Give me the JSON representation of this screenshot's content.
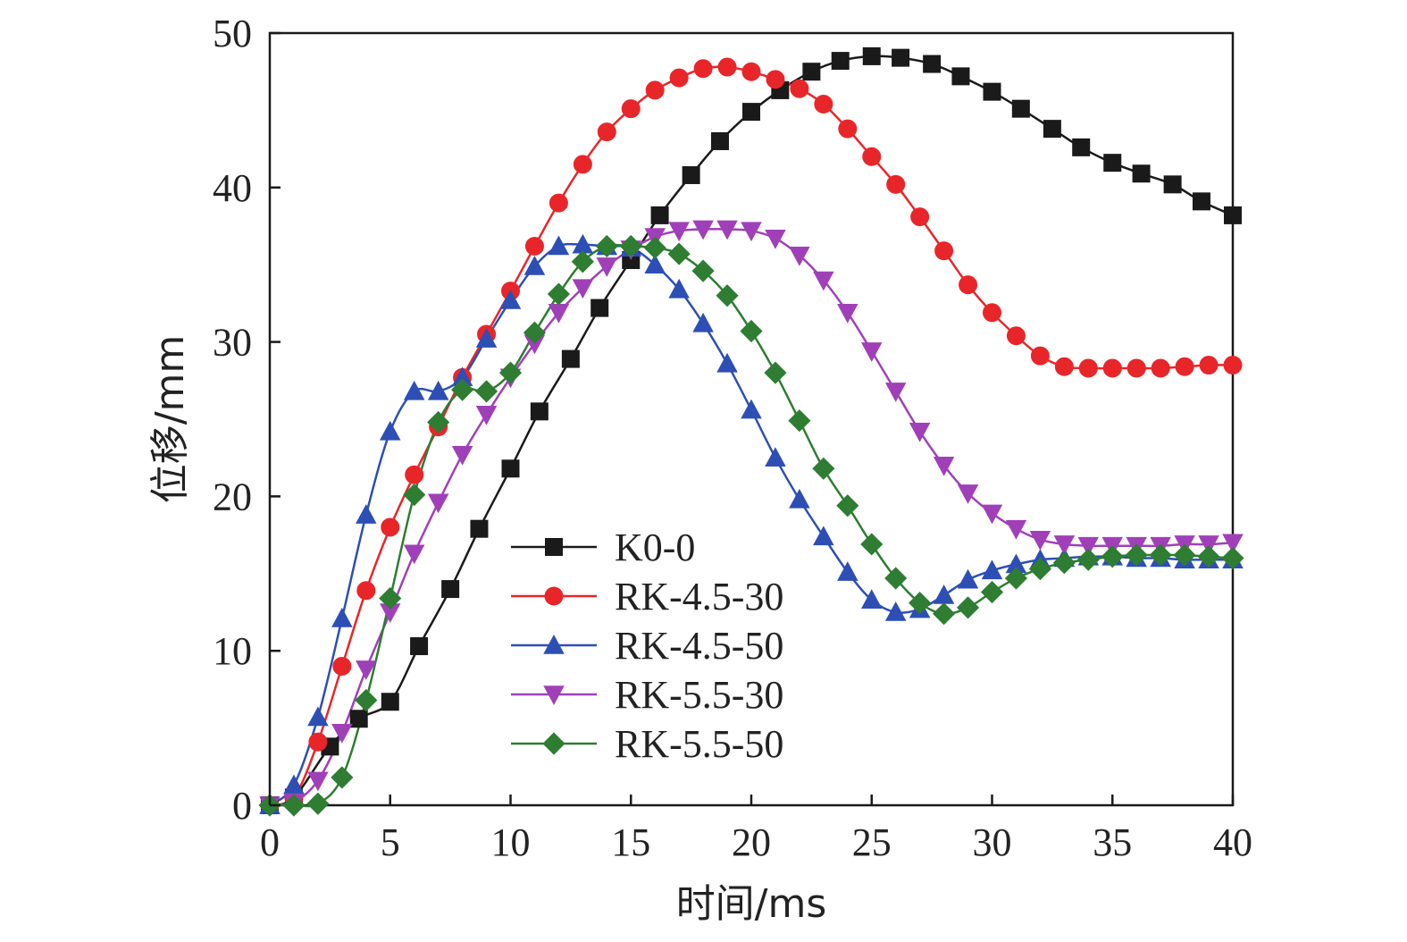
{
  "chart_data": {
    "type": "line",
    "title": "",
    "xlabel": "时间/ms",
    "ylabel": "位移/mm",
    "xlim": [
      0,
      40
    ],
    "ylim": [
      0,
      50
    ],
    "xticks": [
      0,
      5,
      10,
      15,
      20,
      25,
      30,
      35,
      40
    ],
    "yticks": [
      0,
      10,
      20,
      30,
      40,
      50
    ],
    "legend_position": "bottom-center",
    "series": [
      {
        "name": "K0-0",
        "color": "#1a1a1a",
        "marker": "square",
        "x": [
          0,
          1,
          2.5,
          3.7,
          5,
          6.2,
          7.5,
          8.7,
          10,
          11.2,
          12.5,
          13.7,
          15,
          16.2,
          17.5,
          18.7,
          20,
          21.2,
          22.5,
          23.7,
          25,
          26.2,
          27.5,
          28.7,
          30,
          31.2,
          32.5,
          33.7,
          35,
          36.2,
          37.5,
          38.7,
          40
        ],
        "y": [
          0,
          0.5,
          3.8,
          5.6,
          6.7,
          10.3,
          14.0,
          17.9,
          21.8,
          25.5,
          28.9,
          32.2,
          35.3,
          38.2,
          40.8,
          43.0,
          44.9,
          46.3,
          47.5,
          48.2,
          48.5,
          48.4,
          48.0,
          47.2,
          46.2,
          45.1,
          43.8,
          42.6,
          41.6,
          40.9,
          40.2,
          39.1,
          38.2
        ]
      },
      {
        "name": "RK-4.5-30",
        "color": "#e8262a",
        "marker": "circle",
        "x": [
          0,
          1,
          2,
          3,
          4,
          5,
          6,
          7,
          8,
          9,
          10,
          11,
          12,
          13,
          14,
          15,
          16,
          17,
          18,
          19,
          20,
          21,
          22,
          23,
          24,
          25,
          26,
          27,
          28,
          29,
          30,
          31,
          32,
          33,
          34,
          35,
          36,
          37,
          38,
          39,
          40
        ],
        "y": [
          0,
          0.5,
          4.1,
          9.0,
          13.9,
          18.0,
          21.4,
          24.5,
          27.7,
          30.5,
          33.3,
          36.2,
          39.0,
          41.5,
          43.6,
          45.1,
          46.3,
          47.1,
          47.7,
          47.8,
          47.5,
          47.0,
          46.4,
          45.4,
          43.8,
          42.0,
          40.2,
          38.1,
          35.9,
          33.7,
          31.9,
          30.4,
          29.1,
          28.4,
          28.3,
          28.3,
          28.3,
          28.3,
          28.4,
          28.5,
          28.5
        ]
      },
      {
        "name": "RK-4.5-50",
        "color": "#2d4fb5",
        "marker": "triangle-up",
        "x": [
          0,
          1,
          2,
          3,
          4,
          5,
          6,
          7,
          8,
          9,
          10,
          11,
          12,
          13,
          14,
          15,
          16,
          17,
          18,
          19,
          20,
          21,
          22,
          23,
          24,
          25,
          26,
          27,
          28,
          29,
          30,
          31,
          32,
          33,
          34,
          35,
          36,
          37,
          38,
          39,
          40
        ],
        "y": [
          0,
          1.3,
          5.7,
          12.1,
          18.8,
          24.2,
          26.8,
          26.8,
          27.7,
          30.2,
          32.7,
          34.9,
          36.2,
          36.3,
          36.2,
          36.1,
          35.0,
          33.4,
          31.2,
          28.6,
          25.6,
          22.5,
          19.8,
          17.4,
          15.1,
          13.3,
          12.5,
          12.7,
          13.6,
          14.6,
          15.2,
          15.6,
          15.9,
          16.0,
          16.1,
          16.1,
          16.0,
          16.0,
          15.9,
          15.9,
          15.9
        ]
      },
      {
        "name": "RK-5.5-30",
        "color": "#a040b8",
        "marker": "triangle-down",
        "x": [
          0,
          1,
          2,
          3,
          4,
          5,
          6,
          7,
          8,
          9,
          10,
          11,
          12,
          13,
          14,
          15,
          16,
          17,
          18,
          19,
          20,
          21,
          22,
          23,
          24,
          25,
          26,
          27,
          28,
          29,
          30,
          31,
          32,
          33,
          34,
          35,
          36,
          37,
          38,
          39,
          40
        ],
        "y": [
          0,
          0.2,
          1.6,
          4.7,
          8.8,
          12.5,
          16.3,
          19.6,
          22.7,
          25.3,
          27.7,
          29.9,
          31.9,
          33.5,
          34.9,
          36.0,
          36.8,
          37.2,
          37.3,
          37.3,
          37.2,
          36.7,
          35.6,
          34.0,
          31.9,
          29.4,
          26.8,
          24.2,
          22.0,
          20.2,
          18.9,
          17.9,
          17.2,
          16.9,
          16.8,
          16.8,
          16.8,
          16.8,
          16.9,
          16.9,
          17.0
        ]
      },
      {
        "name": "RK-5.5-50",
        "color": "#2e7d32",
        "marker": "diamond",
        "x": [
          0,
          1,
          2,
          3,
          4,
          5,
          6,
          7,
          8,
          9,
          10,
          11,
          12,
          13,
          14,
          15,
          16,
          17,
          18,
          19,
          20,
          21,
          22,
          23,
          24,
          25,
          26,
          27,
          28,
          29,
          30,
          31,
          32,
          33,
          34,
          35,
          36,
          37,
          38,
          39,
          40
        ],
        "y": [
          0,
          0,
          0.1,
          1.8,
          6.8,
          13.4,
          20.1,
          24.8,
          26.9,
          26.8,
          28.0,
          30.6,
          33.1,
          35.2,
          36.2,
          36.2,
          36.1,
          35.7,
          34.6,
          33.0,
          30.7,
          28.0,
          24.9,
          21.8,
          19.4,
          16.9,
          14.7,
          13.1,
          12.4,
          12.8,
          13.8,
          14.7,
          15.3,
          15.7,
          15.9,
          16.1,
          16.2,
          16.2,
          16.2,
          16.1,
          16.0
        ]
      }
    ]
  }
}
